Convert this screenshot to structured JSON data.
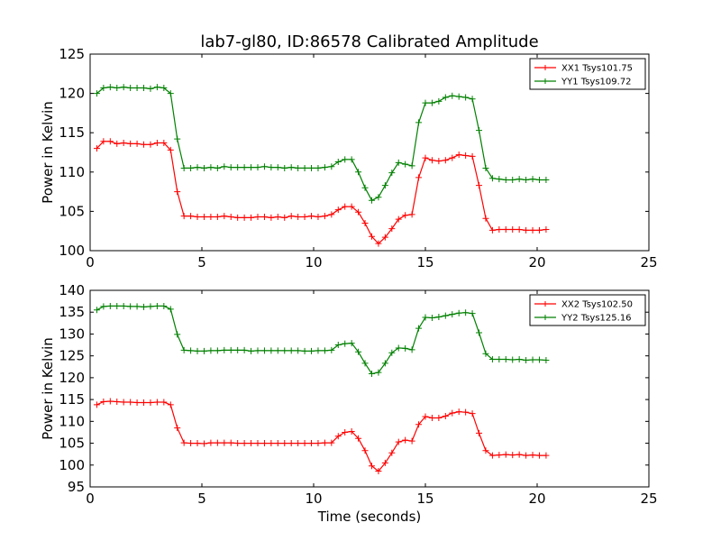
{
  "title": "lab7-gl80, ID:86578 Calibrated Amplitude",
  "xlabel": "Time (seconds)",
  "colors": {
    "xx": "#ff0000",
    "yy": "#008000"
  },
  "chart_data": [
    {
      "type": "line",
      "ylabel": "Power in Kelvin",
      "xlim": [
        0,
        25
      ],
      "ylim": [
        100,
        125
      ],
      "xticks": [
        "0",
        "5",
        "10",
        "15",
        "20",
        "25"
      ],
      "yticks": [
        "100",
        "105",
        "110",
        "115",
        "120",
        "125"
      ],
      "legend_position": "top-right",
      "x": [
        0.3,
        0.6,
        0.9,
        1.2,
        1.5,
        1.8,
        2.1,
        2.4,
        2.7,
        3.0,
        3.3,
        3.6,
        3.9,
        4.2,
        4.5,
        4.8,
        5.1,
        5.4,
        5.7,
        6.0,
        6.3,
        6.6,
        6.9,
        7.2,
        7.5,
        7.8,
        8.1,
        8.4,
        8.7,
        9.0,
        9.3,
        9.6,
        9.9,
        10.2,
        10.5,
        10.8,
        11.1,
        11.4,
        11.7,
        12.0,
        12.3,
        12.6,
        12.9,
        13.2,
        13.5,
        13.8,
        14.1,
        14.4,
        14.7,
        15.0,
        15.3,
        15.6,
        15.9,
        16.2,
        16.5,
        16.8,
        17.1,
        17.4,
        17.7,
        18.0,
        18.3,
        18.6,
        18.9,
        19.2,
        19.5,
        19.8,
        20.1,
        20.4
      ],
      "series": [
        {
          "name": "XX1 Tsys101.75",
          "color_key": "xx",
          "values": [
            113.0,
            113.9,
            113.9,
            113.6,
            113.7,
            113.6,
            113.6,
            113.5,
            113.5,
            113.7,
            113.7,
            112.8,
            107.5,
            104.4,
            104.4,
            104.3,
            104.3,
            104.3,
            104.3,
            104.4,
            104.3,
            104.2,
            104.2,
            104.2,
            104.3,
            104.3,
            104.2,
            104.3,
            104.2,
            104.4,
            104.3,
            104.3,
            104.4,
            104.3,
            104.4,
            104.6,
            105.2,
            105.6,
            105.6,
            104.9,
            103.5,
            101.8,
            100.9,
            101.7,
            102.8,
            104.0,
            104.5,
            104.6,
            109.3,
            111.8,
            111.5,
            111.4,
            111.5,
            111.8,
            112.2,
            112.1,
            112.0,
            108.3,
            104.1,
            102.6,
            102.7,
            102.7,
            102.7,
            102.7,
            102.6,
            102.6,
            102.6,
            102.7
          ]
        },
        {
          "name": "YY1 Tsys109.72",
          "color_key": "yy",
          "values": [
            120.0,
            120.7,
            120.8,
            120.7,
            120.8,
            120.7,
            120.7,
            120.7,
            120.6,
            120.8,
            120.7,
            120.0,
            114.2,
            110.5,
            110.5,
            110.6,
            110.5,
            110.6,
            110.5,
            110.7,
            110.6,
            110.6,
            110.6,
            110.6,
            110.6,
            110.7,
            110.6,
            110.6,
            110.5,
            110.6,
            110.5,
            110.5,
            110.5,
            110.5,
            110.6,
            110.7,
            111.3,
            111.6,
            111.6,
            110.0,
            108.0,
            106.4,
            106.8,
            108.3,
            109.9,
            111.2,
            111.0,
            110.8,
            116.3,
            118.8,
            118.8,
            119.0,
            119.5,
            119.7,
            119.6,
            119.5,
            119.3,
            115.3,
            110.5,
            109.2,
            109.1,
            109.0,
            109.0,
            109.1,
            109.0,
            109.1,
            109.0,
            109.0
          ]
        }
      ]
    },
    {
      "type": "line",
      "ylabel": "Power in Kelvin",
      "xlim": [
        0,
        25
      ],
      "ylim": [
        95,
        140
      ],
      "xticks": [
        "0",
        "5",
        "10",
        "15",
        "20",
        "25"
      ],
      "yticks": [
        "95",
        "100",
        "105",
        "110",
        "115",
        "120",
        "125",
        "130",
        "135",
        "140"
      ],
      "legend_position": "top-right",
      "x": [
        0.3,
        0.6,
        0.9,
        1.2,
        1.5,
        1.8,
        2.1,
        2.4,
        2.7,
        3.0,
        3.3,
        3.6,
        3.9,
        4.2,
        4.5,
        4.8,
        5.1,
        5.4,
        5.7,
        6.0,
        6.3,
        6.6,
        6.9,
        7.2,
        7.5,
        7.8,
        8.1,
        8.4,
        8.7,
        9.0,
        9.3,
        9.6,
        9.9,
        10.2,
        10.5,
        10.8,
        11.1,
        11.4,
        11.7,
        12.0,
        12.3,
        12.6,
        12.9,
        13.2,
        13.5,
        13.8,
        14.1,
        14.4,
        14.7,
        15.0,
        15.3,
        15.6,
        15.9,
        16.2,
        16.5,
        16.8,
        17.1,
        17.4,
        17.7,
        18.0,
        18.3,
        18.6,
        18.9,
        19.2,
        19.5,
        19.8,
        20.1,
        20.4
      ],
      "series": [
        {
          "name": "XX2 Tsys102.50",
          "color_key": "xx",
          "values": [
            113.8,
            114.5,
            114.6,
            114.5,
            114.4,
            114.4,
            114.3,
            114.3,
            114.3,
            114.4,
            114.4,
            113.8,
            108.5,
            105.1,
            105.0,
            105.0,
            104.9,
            105.1,
            105.1,
            105.1,
            105.1,
            105.0,
            105.0,
            105.0,
            105.0,
            105.0,
            105.0,
            105.0,
            105.0,
            105.0,
            105.0,
            105.0,
            105.0,
            105.0,
            105.1,
            105.1,
            106.6,
            107.5,
            107.7,
            106.1,
            103.3,
            99.8,
            98.6,
            100.5,
            102.8,
            105.3,
            105.7,
            105.5,
            109.3,
            111.1,
            110.8,
            110.8,
            111.2,
            111.9,
            112.2,
            112.1,
            111.8,
            107.3,
            103.3,
            102.2,
            102.3,
            102.4,
            102.3,
            102.4,
            102.2,
            102.3,
            102.2,
            102.2
          ]
        },
        {
          "name": "YY2 Tsys125.16",
          "color_key": "yy",
          "values": [
            135.5,
            136.3,
            136.4,
            136.4,
            136.4,
            136.3,
            136.3,
            136.2,
            136.3,
            136.4,
            136.4,
            135.7,
            129.9,
            126.3,
            126.2,
            126.1,
            126.1,
            126.2,
            126.2,
            126.3,
            126.3,
            126.3,
            126.3,
            126.1,
            126.2,
            126.2,
            126.2,
            126.2,
            126.2,
            126.2,
            126.2,
            126.1,
            126.1,
            126.2,
            126.2,
            126.3,
            127.5,
            127.8,
            127.9,
            125.9,
            123.3,
            120.9,
            121.2,
            123.3,
            125.7,
            126.8,
            126.7,
            126.4,
            131.3,
            133.8,
            133.7,
            133.9,
            134.2,
            134.5,
            134.8,
            134.9,
            134.7,
            130.3,
            125.5,
            124.2,
            124.2,
            124.2,
            124.1,
            124.2,
            124.0,
            124.1,
            124.1,
            124.0
          ]
        }
      ]
    }
  ]
}
